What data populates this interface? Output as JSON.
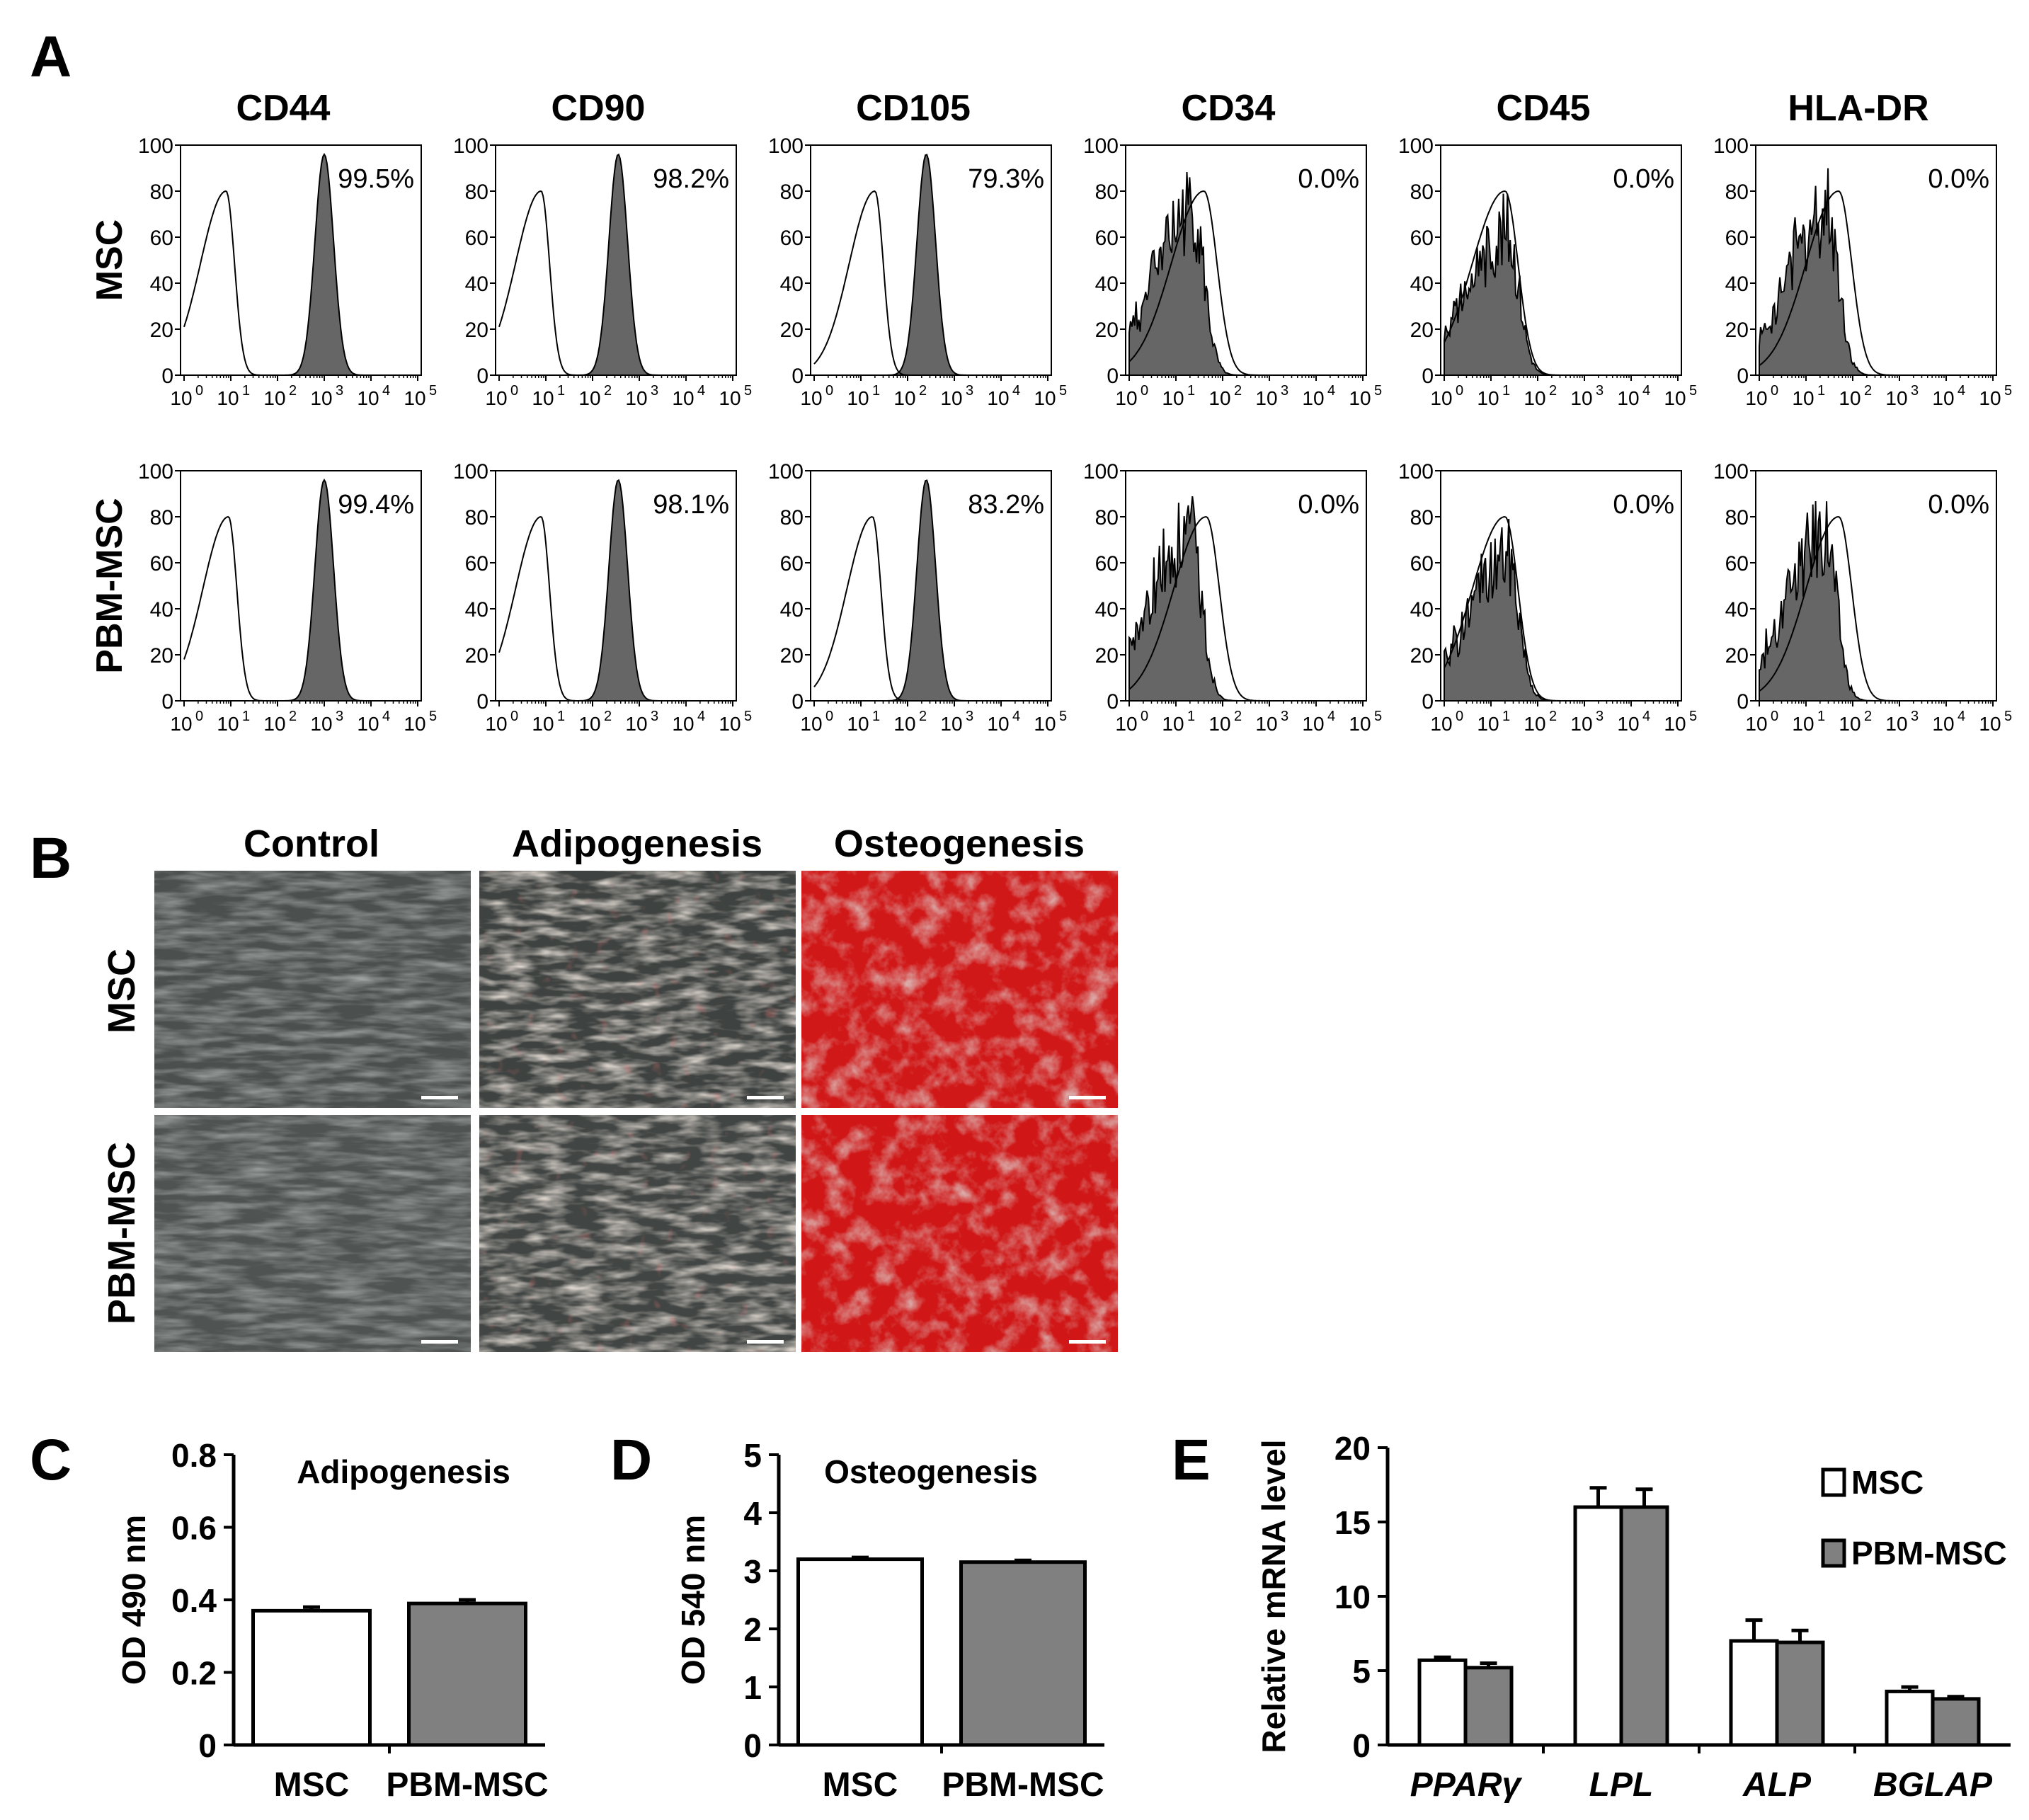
{
  "panel_labels": {
    "A": "A",
    "B": "B",
    "C": "C",
    "D": "D",
    "E": "E"
  },
  "flow": {
    "markers": [
      "CD44",
      "CD90",
      "CD105",
      "CD34",
      "CD45",
      "HLA-DR"
    ],
    "rows": [
      "MSC",
      "PBM-MSC"
    ],
    "percentages": [
      [
        "99.5%",
        "98.2%",
        "79.3%",
        "0.0%",
        "0.0%",
        "0.0%"
      ],
      [
        "99.4%",
        "98.1%",
        "83.2%",
        "0.0%",
        "0.0%",
        "0.0%"
      ]
    ],
    "y_ticks": [
      "0",
      "20",
      "40",
      "60",
      "80",
      "100"
    ],
    "x_ticks": [
      "10",
      "10",
      "10",
      "10",
      "10",
      "10"
    ],
    "x_exponents": [
      "0",
      "1",
      "2",
      "3",
      "4",
      "5"
    ],
    "colors": {
      "filled": "#666666",
      "outline": "#000000"
    }
  },
  "images": {
    "columns": [
      "Control",
      "Adipogenesis",
      "Osteogenesis"
    ],
    "rows": [
      "MSC",
      "PBM-MSC"
    ]
  },
  "chart_data": [
    {
      "id": "A",
      "type": "histogram-grid",
      "x_scale": "log10",
      "xlim_log10": [
        0,
        5
      ],
      "ylim": [
        0,
        100
      ],
      "modes_log10": {
        "isotype_outline": [
          [
            0.9,
            0.9,
            1.3,
            1.6,
            1.3,
            1.7
          ],
          [
            0.95,
            0.9,
            1.25,
            1.65,
            1.3,
            1.7
          ]
        ],
        "stained_filled": [
          [
            3.0,
            2.55,
            2.4,
            1.35,
            1.35,
            1.45
          ],
          [
            3.0,
            2.55,
            2.4,
            1.3,
            1.35,
            1.4
          ]
        ]
      }
    },
    {
      "id": "C",
      "type": "bar",
      "title": "Adipogenesis",
      "ylabel": "OD 490 nm",
      "categories": [
        "MSC",
        "PBM-MSC"
      ],
      "values": [
        0.37,
        0.39
      ],
      "errors": [
        0.01,
        0.01
      ],
      "ylim": [
        0,
        0.8
      ],
      "yticks": [
        "0",
        "0.2",
        "0.4",
        "0.6",
        "0.8"
      ]
    },
    {
      "id": "D",
      "type": "bar",
      "title": "Osteogenesis",
      "ylabel": "OD 540 nm",
      "categories": [
        "MSC",
        "PBM-MSC"
      ],
      "values": [
        3.2,
        3.15
      ],
      "errors": [
        0.03,
        0.03
      ],
      "ylim": [
        0,
        5
      ],
      "yticks": [
        "0",
        "1",
        "2",
        "3",
        "4",
        "5"
      ]
    },
    {
      "id": "E",
      "type": "bar",
      "ylabel": "Relative mRNA level",
      "categories": [
        "PPARγ",
        "LPL",
        "ALP",
        "BGLAP"
      ],
      "series": [
        {
          "name": "MSC",
          "values": [
            5.7,
            16.0,
            7.0,
            3.6
          ],
          "errors": [
            0.2,
            1.3,
            1.4,
            0.3
          ]
        },
        {
          "name": "PBM-MSC",
          "values": [
            5.2,
            16.0,
            6.9,
            3.1
          ],
          "errors": [
            0.3,
            1.2,
            0.8,
            0.15
          ]
        }
      ],
      "ylim": [
        0,
        20
      ],
      "yticks": [
        "0",
        "5",
        "10",
        "15",
        "20"
      ],
      "legend": [
        "MSC",
        "PBM-MSC"
      ]
    }
  ]
}
